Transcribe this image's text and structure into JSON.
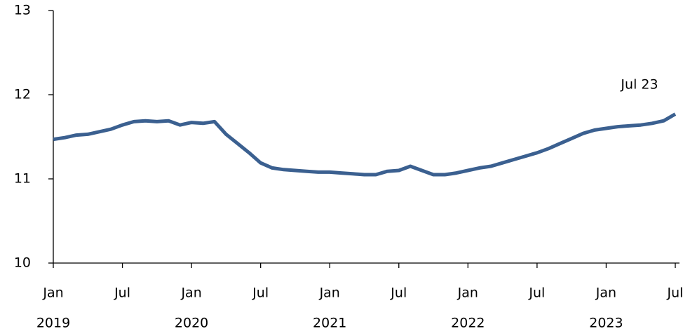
{
  "chart_data": {
    "type": "line",
    "x": [
      "2019-01",
      "2019-02",
      "2019-03",
      "2019-04",
      "2019-05",
      "2019-06",
      "2019-07",
      "2019-08",
      "2019-09",
      "2019-10",
      "2019-11",
      "2019-12",
      "2020-01",
      "2020-02",
      "2020-03",
      "2020-04",
      "2020-05",
      "2020-06",
      "2020-07",
      "2020-08",
      "2020-09",
      "2020-10",
      "2020-11",
      "2020-12",
      "2021-01",
      "2021-02",
      "2021-03",
      "2021-04",
      "2021-05",
      "2021-06",
      "2021-07",
      "2021-08",
      "2021-09",
      "2021-10",
      "2021-11",
      "2021-12",
      "2022-01",
      "2022-02",
      "2022-03",
      "2022-04",
      "2022-05",
      "2022-06",
      "2022-07",
      "2022-08",
      "2022-09",
      "2022-10",
      "2022-11",
      "2022-12",
      "2023-01",
      "2023-02",
      "2023-03",
      "2023-04",
      "2023-05",
      "2023-06",
      "2023-07"
    ],
    "values": [
      11.47,
      11.49,
      11.52,
      11.53,
      11.56,
      11.59,
      11.64,
      11.68,
      11.69,
      11.68,
      11.69,
      11.64,
      11.67,
      11.66,
      11.68,
      11.53,
      11.42,
      11.31,
      11.19,
      11.13,
      11.11,
      11.1,
      11.09,
      11.08,
      11.08,
      11.07,
      11.06,
      11.05,
      11.05,
      11.09,
      11.1,
      11.15,
      11.1,
      11.05,
      11.05,
      11.07,
      11.1,
      11.13,
      11.15,
      11.19,
      11.23,
      11.27,
      11.31,
      11.36,
      11.42,
      11.48,
      11.54,
      11.58,
      11.6,
      11.62,
      11.63,
      11.64,
      11.66,
      11.69,
      11.77
    ],
    "color": "#3b6090",
    "ylim": [
      10,
      13
    ],
    "yticks": [
      10,
      11,
      12,
      13
    ],
    "xlim": [
      "2019-01",
      "2023-07"
    ],
    "xticks": [
      {
        "value": "2019-01",
        "label": "Jan"
      },
      {
        "value": "2019-07",
        "label": "Jul"
      },
      {
        "value": "2020-01",
        "label": "Jan"
      },
      {
        "value": "2020-07",
        "label": "Jul"
      },
      {
        "value": "2021-01",
        "label": "Jan"
      },
      {
        "value": "2021-07",
        "label": "Jul"
      },
      {
        "value": "2022-01",
        "label": "Jan"
      },
      {
        "value": "2022-07",
        "label": "Jul"
      },
      {
        "value": "2023-01",
        "label": "Jan"
      },
      {
        "value": "2023-07",
        "label": "Jul"
      }
    ],
    "year_labels": [
      {
        "value": "2019-01",
        "label": "2019"
      },
      {
        "value": "2020-01",
        "label": "2020"
      },
      {
        "value": "2021-01",
        "label": "2021"
      },
      {
        "value": "2022-01",
        "label": "2022"
      },
      {
        "value": "2023-01",
        "label": "2023"
      }
    ],
    "annotation": "Jul 23"
  }
}
